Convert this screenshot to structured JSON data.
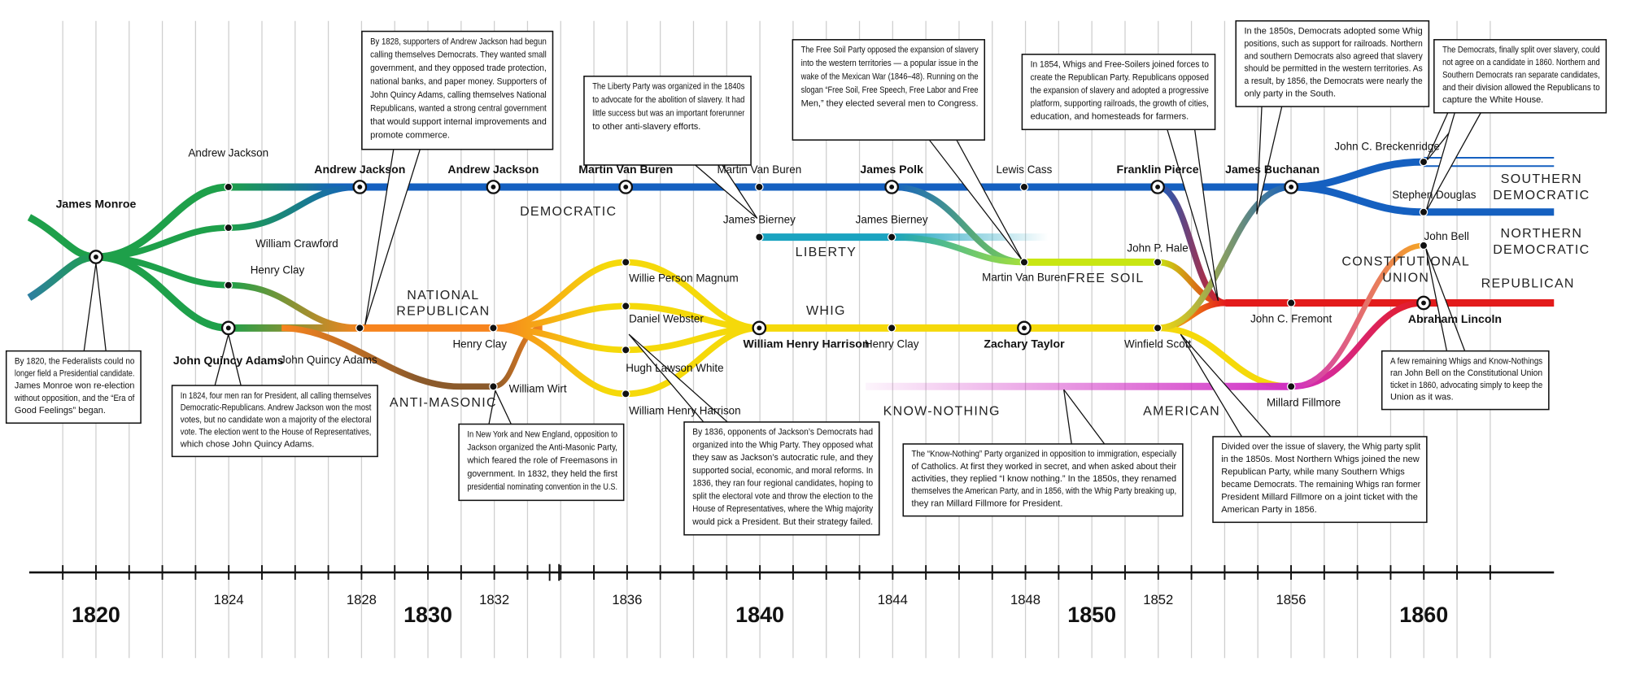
{
  "presidents": [
    "James Monroe",
    "John Quincy Adams",
    "Andrew Jackson",
    "Andrew Jackson",
    "Martin Van Buren",
    "William Henry Harrison",
    "James Polk",
    "Zachary Taylor",
    "Franklin Pierce",
    "James Buchanan",
    "Abraham Lincoln"
  ],
  "candidates": [
    "Andrew Jackson",
    "William Crawford",
    "Henry Clay",
    "John Quincy Adams",
    "Henry Clay",
    "William Wirt",
    "Willie Person Magnum",
    "Daniel Webster",
    "Hugh Lawson White",
    "William Henry Harrison",
    "Martin Van Buren",
    "James Bierney",
    "James Bierney",
    "Henry Clay",
    "Lewis Cass",
    "Martin Van Buren",
    "John P. Hale",
    "Winfield Scott",
    "John C. Fremont",
    "Millard Fillmore",
    "John C. Breckenridge",
    "Stephen Douglas",
    "John Bell"
  ],
  "parties": [
    {
      "lines": [
        "DEMOCRATIC"
      ]
    },
    {
      "lines": [
        "NATIONAL",
        "REPUBLICAN"
      ]
    },
    {
      "lines": [
        "ANTI-MASONIC"
      ]
    },
    {
      "lines": [
        "LIBERTY"
      ]
    },
    {
      "lines": [
        "WHIG"
      ]
    },
    {
      "lines": [
        "FREE SOIL"
      ]
    },
    {
      "lines": [
        "KNOW-NOTHING"
      ]
    },
    {
      "lines": [
        "AMERICAN"
      ]
    },
    {
      "lines": [
        "SOUTHERN",
        "DEMOCRATIC"
      ]
    },
    {
      "lines": [
        "NORTHERN",
        "DEMOCRATIC"
      ]
    },
    {
      "lines": [
        "CONSTITUTIONAL",
        "UNION"
      ]
    },
    {
      "lines": [
        "REPUBLICAN"
      ]
    }
  ],
  "notes": [
    {
      "lines": [
        "By 1820, the Federalists could no",
        "longer field a Presidential candidate.",
        "James Monroe won re-election",
        "without opposition, and the “Era of",
        "Good Feelings” began."
      ]
    },
    {
      "lines": [
        "In 1824, four men ran for President, all calling themselves",
        "Democratic-Republicans. Andrew Jackson won the most",
        "votes, but no candidate won a majority of the electoral",
        "vote. The election went to the House of Representatives,",
        "which chose John Quincy Adams."
      ]
    },
    {
      "lines": [
        "By 1828, supporters of Andrew Jackson had begun",
        "calling themselves Democrats. They wanted small",
        "government, and they opposed trade protection,",
        "national banks, and paper money. Supporters of",
        "John Quincy Adams, calling themselves National",
        "Republicans, wanted a strong central government",
        "that would support internal improvements and",
        "promote commerce."
      ]
    },
    {
      "lines": [
        "In New York and New England, opposition to",
        "Jackson organized the Anti-Masonic Party,",
        "which feared the role of Freemasons in",
        "government. In 1832, they held the first",
        "presidential nominating convention in the U.S."
      ]
    },
    {
      "lines": [
        "The Liberty Party was organized in the 1840s",
        "to advocate for the abolition of slavery. It had",
        "little success but was an important forerunner",
        "to other anti-slavery efforts."
      ]
    },
    {
      "lines": [
        "By 1836, opponents of Jackson’s Democrats had",
        "organized into the Whig Party. They opposed what",
        "they saw as Jackson’s autocratic rule, and they",
        "supported social, economic, and moral reforms. In",
        "1836, they ran four regional candidates, hoping to",
        "split the electoral vote and throw the election to the",
        "House of Representatives, where the Whig majority",
        "would pick a President. But their strategy failed."
      ]
    },
    {
      "lines": [
        "The Free Soil Party opposed the expansion of slavery",
        "into the western territories — a popular issue in the",
        "wake of the Mexican War (1846–48). Running on the",
        "slogan “Free Soil, Free Speech, Free Labor and Free",
        "Men,” they elected several men to Congress."
      ]
    },
    {
      "lines": [
        "In 1854, Whigs and Free-Soilers joined forces to",
        "create the Republican Party. Republicans opposed",
        "the expansion of slavery and adopted a progressive",
        "platform, supporting railroads, the growth of cities,",
        "education, and homesteads for farmers."
      ]
    },
    {
      "lines": [
        "In the 1850s, Democrats adopted some Whig",
        "positions, such as support for railroads. Northern",
        "and southern Democrats also agreed that slavery",
        "should be permitted in the western territories. As",
        "a result, by 1856, the  Democrats were nearly the",
        "only party in the South."
      ]
    },
    {
      "lines": [
        "The Democrats, finally split over slavery, could",
        "not agree on a candidate in 1860. Northern and",
        "Southern Democrats ran separate candidates,",
        "and their division allowed the Republicans to",
        "capture the White House."
      ]
    },
    {
      "lines": [
        "The “Know-Nothing” Party organized in opposition to immigration, especially",
        "of Catholics. At first they worked in secret, and when asked about their",
        "activities, they replied “I know nothing.” In the 1850s, they renamed",
        "themselves the American Party, and in 1856, with the Whig Party breaking up,",
        "they ran Millard Fillmore for President."
      ]
    },
    {
      "lines": [
        "A few remaining Whigs and Know-Nothings",
        "ran John Bell on the Constitutional Union",
        "ticket in 1860, advocating simply to keep the",
        "Union as it was."
      ]
    },
    {
      "lines": [
        "Divided over the issue of slavery, the Whig party split",
        "in the 1850s. Most Northern Whigs joined the new",
        "Republican Party, while many Southern Whigs",
        "became Democrats. The remaining Whigs ran former",
        "President Millard Fillmore on a joint ticket with the",
        "American Party in 1856."
      ]
    }
  ],
  "timeline": {
    "major_years": [
      "1820",
      "1830",
      "1840",
      "1850",
      "1860"
    ],
    "minor_years": [
      "1824",
      "1828",
      "1832",
      "1836",
      "1844",
      "1848",
      "1852",
      "1856"
    ]
  }
}
